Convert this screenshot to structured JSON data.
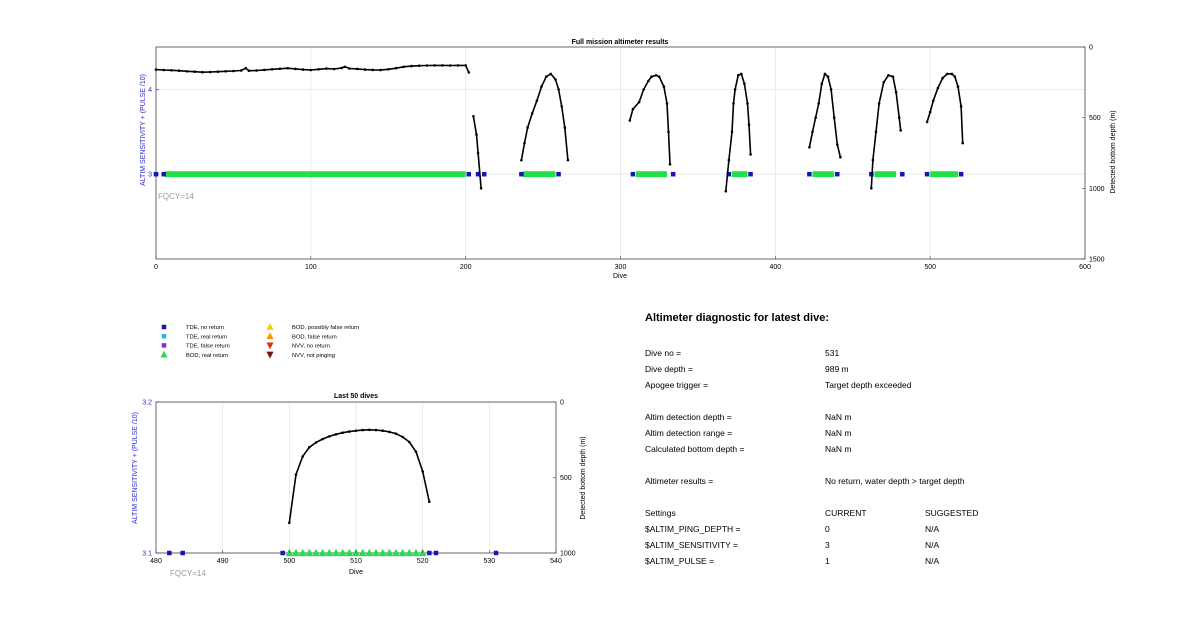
{
  "chart_data": [
    {
      "type": "scatter",
      "title": "Full mission altimeter results",
      "xlabel": "Dive",
      "ylabel": "ALTIM SENSITIVITY + (PULSE /10)",
      "y2label": "Detected bottom depth (m)",
      "xlim": [
        0,
        600
      ],
      "ylim": [
        2,
        4.5
      ],
      "y2lim": [
        0,
        1500
      ],
      "xticks": [
        "0",
        "100",
        "200",
        "300",
        "400",
        "500",
        "600"
      ],
      "yticks": [
        "3",
        "4"
      ],
      "y2ticks": [
        "0",
        "500",
        "1000",
        "1500"
      ],
      "annotation": "FQCY=14",
      "grid": true,
      "series": [
        {
          "name": "depth profile",
          "type": "line",
          "color": "#000000",
          "segments": [
            [
              [
                0,
                160
              ],
              [
                5,
                163
              ],
              [
                10,
                165
              ],
              [
                15,
                168
              ],
              [
                20,
                172
              ],
              [
                25,
                175
              ],
              [
                30,
                178
              ],
              [
                35,
                177
              ],
              [
                40,
                175
              ],
              [
                45,
                172
              ],
              [
                50,
                170
              ],
              [
                55,
                166
              ],
              [
                58,
                150
              ],
              [
                60,
                168
              ],
              [
                65,
                166
              ],
              [
                70,
                162
              ],
              [
                75,
                158
              ],
              [
                80,
                154
              ],
              [
                85,
                150
              ],
              [
                90,
                155
              ],
              [
                95,
                160
              ],
              [
                100,
                163
              ],
              [
                105,
                158
              ],
              [
                110,
                153
              ],
              [
                115,
                156
              ],
              [
                120,
                148
              ],
              [
                122,
                140
              ],
              [
                125,
                152
              ],
              [
                130,
                155
              ],
              [
                135,
                160
              ],
              [
                140,
                162
              ],
              [
                145,
                163
              ],
              [
                150,
                158
              ],
              [
                155,
                150
              ],
              [
                160,
                140
              ],
              [
                165,
                135
              ],
              [
                170,
                132
              ],
              [
                175,
                131
              ],
              [
                180,
                130
              ],
              [
                185,
                130
              ],
              [
                190,
                131
              ],
              [
                195,
                130
              ],
              [
                200,
                130
              ],
              [
                202,
                180
              ]
            ],
            [
              [
                205,
                490
              ],
              [
                207,
                620
              ],
              [
                208,
                750
              ],
              [
                210,
                1000
              ]
            ],
            [
              [
                236,
                800
              ],
              [
                238,
                680
              ],
              [
                240,
                570
              ],
              [
                243,
                470
              ],
              [
                246,
                380
              ],
              [
                249,
                280
              ],
              [
                252,
                210
              ],
              [
                255,
                190
              ],
              [
                258,
                230
              ],
              [
                260,
                300
              ],
              [
                262,
                420
              ],
              [
                264,
                570
              ],
              [
                266,
                800
              ]
            ],
            [
              [
                306,
                520
              ],
              [
                308,
                440
              ],
              [
                312,
                390
              ],
              [
                315,
                300
              ],
              [
                318,
                240
              ],
              [
                320,
                210
              ],
              [
                323,
                200
              ],
              [
                325,
                210
              ],
              [
                328,
                280
              ],
              [
                330,
                400
              ],
              [
                331,
                600
              ],
              [
                332,
                830
              ]
            ],
            [
              [
                368,
                1020
              ],
              [
                370,
                800
              ],
              [
                372,
                600
              ],
              [
                373,
                400
              ],
              [
                374,
                300
              ],
              [
                376,
                200
              ],
              [
                378,
                190
              ],
              [
                380,
                260
              ],
              [
                382,
                400
              ],
              [
                383,
                550
              ],
              [
                384,
                760
              ]
            ],
            [
              [
                422,
                710
              ],
              [
                424,
                600
              ],
              [
                426,
                500
              ],
              [
                428,
                400
              ],
              [
                430,
                260
              ],
              [
                432,
                190
              ],
              [
                434,
                210
              ],
              [
                436,
                300
              ],
              [
                438,
                500
              ],
              [
                440,
                690
              ],
              [
                442,
                780
              ]
            ],
            [
              [
                462,
                1000
              ],
              [
                463,
                800
              ],
              [
                465,
                600
              ],
              [
                467,
                400
              ],
              [
                470,
                250
              ],
              [
                473,
                200
              ],
              [
                476,
                210
              ],
              [
                478,
                320
              ],
              [
                480,
                500
              ],
              [
                481,
                590
              ]
            ],
            [
              [
                498,
                530
              ],
              [
                500,
                460
              ],
              [
                502,
                380
              ],
              [
                505,
                290
              ],
              [
                508,
                220
              ],
              [
                511,
                190
              ],
              [
                514,
                190
              ],
              [
                516,
                210
              ],
              [
                518,
                280
              ],
              [
                520,
                420
              ],
              [
                521,
                680
              ]
            ]
          ]
        },
        {
          "name": "TDE, no return",
          "type": "marker",
          "color": "#1616b4",
          "points": [
            [
              0,
              3
            ],
            [
              5,
              3
            ],
            [
              202,
              3
            ],
            [
              208,
              3
            ],
            [
              212,
              3
            ],
            [
              236,
              3
            ],
            [
              260,
              3
            ],
            [
              308,
              3
            ],
            [
              334,
              3
            ],
            [
              370,
              3
            ],
            [
              384,
              3
            ],
            [
              422,
              3
            ],
            [
              440,
              3
            ],
            [
              462,
              3
            ],
            [
              482,
              3
            ],
            [
              498,
              3
            ],
            [
              520,
              3
            ]
          ]
        },
        {
          "name": "BOD, real return",
          "type": "band",
          "color": "#22e04a",
          "ranges": [
            [
              6,
              200
            ],
            [
              237,
              258
            ],
            [
              310,
              330
            ],
            [
              372,
              382
            ],
            [
              424,
              438
            ],
            [
              464,
              478
            ],
            [
              500,
              518
            ]
          ]
        }
      ]
    },
    {
      "type": "scatter",
      "title": "Last 50 dives",
      "xlabel": "Dive",
      "ylabel": "ALTIM SENSITIVITY + (PULSE /10)",
      "y2label": "Detected bottom depth (m)",
      "xlim": [
        480,
        540
      ],
      "ylim": [
        3.1,
        3.2
      ],
      "y2lim": [
        0,
        1000
      ],
      "xticks": [
        "480",
        "490",
        "500",
        "510",
        "520",
        "530",
        "540"
      ],
      "yticks": [
        "3.1",
        "3.2"
      ],
      "y2ticks": [
        "0",
        "500",
        "1000"
      ],
      "annotation": "FQCY=14",
      "grid": true,
      "series": [
        {
          "name": "depth profile",
          "type": "line",
          "color": "#000000",
          "points": [
            [
              500,
              800
            ],
            [
              501,
              480
            ],
            [
              502,
              360
            ],
            [
              503,
              300
            ],
            [
              504,
              268
            ],
            [
              505,
              245
            ],
            [
              506,
              228
            ],
            [
              507,
              214
            ],
            [
              508,
              203
            ],
            [
              509,
              196
            ],
            [
              510,
              190
            ],
            [
              511,
              186
            ],
            [
              512,
              184
            ],
            [
              513,
              186
            ],
            [
              514,
              190
            ],
            [
              515,
              198
            ],
            [
              516,
              210
            ],
            [
              517,
              232
            ],
            [
              518,
              265
            ],
            [
              519,
              330
            ],
            [
              520,
              460
            ],
            [
              521,
              660
            ]
          ]
        },
        {
          "name": "TDE, no return",
          "type": "marker",
          "color": "#1616b4",
          "points": [
            [
              482,
              3.1
            ],
            [
              484,
              3.1
            ],
            [
              499,
              3.1
            ],
            [
              521,
              3.1
            ],
            [
              522,
              3.1
            ],
            [
              531,
              3.1
            ]
          ]
        },
        {
          "name": "BOD, real return",
          "type": "marker",
          "color": "#22e04a",
          "points": [
            [
              500,
              3.1
            ],
            [
              501,
              3.1
            ],
            [
              502,
              3.1
            ],
            [
              503,
              3.1
            ],
            [
              504,
              3.1
            ],
            [
              505,
              3.1
            ],
            [
              506,
              3.1
            ],
            [
              507,
              3.1
            ],
            [
              508,
              3.1
            ],
            [
              509,
              3.1
            ],
            [
              510,
              3.1
            ],
            [
              511,
              3.1
            ],
            [
              512,
              3.1
            ],
            [
              513,
              3.1
            ],
            [
              514,
              3.1
            ],
            [
              515,
              3.1
            ],
            [
              516,
              3.1
            ],
            [
              517,
              3.1
            ],
            [
              518,
              3.1
            ],
            [
              519,
              3.1
            ],
            [
              520,
              3.1
            ]
          ]
        }
      ]
    }
  ],
  "legend": [
    {
      "label": "TDE, no return",
      "shape": "square",
      "color": "#1616b4"
    },
    {
      "label": "TDE, real return",
      "shape": "square",
      "color": "#2ab6e0"
    },
    {
      "label": "TDE, false return",
      "shape": "square",
      "color": "#8a2be2"
    },
    {
      "label": "BOD, real return",
      "shape": "triangle-up",
      "color": "#22e04a"
    },
    {
      "label": "BOD, possibly false return",
      "shape": "triangle-up",
      "color": "#f0d000"
    },
    {
      "label": "BOD, false return",
      "shape": "triangle-up",
      "color": "#f09a00"
    },
    {
      "label": "NVV, no return",
      "shape": "triangle-down",
      "color": "#e03010"
    },
    {
      "label": "NVV, not pinging",
      "shape": "triangle-down",
      "color": "#7a1010"
    }
  ],
  "diagnostic": {
    "title": "Altimeter diagnostic for latest dive:",
    "dive_no_label": "Dive no =",
    "dive_no": "531",
    "dive_depth_label": "Dive depth =",
    "dive_depth": "989 m",
    "apogee_label": "Apogee trigger =",
    "apogee": "Target depth exceeded",
    "det_depth_label": "Altim detection depth =",
    "det_depth": "NaN m",
    "det_range_label": "Altim detection range =",
    "det_range": "NaN m",
    "bottom_label": "Calculated bottom depth =",
    "bottom": "NaN m",
    "results_label": "Altimeter results =",
    "results": "No return, water depth > target depth",
    "settings_label": "Settings",
    "current_label": "CURRENT",
    "suggested_label": "SUGGESTED",
    "settings": [
      {
        "name": "$ALTIM_PING_DEPTH =",
        "current": "0",
        "suggested": "N/A"
      },
      {
        "name": "$ALTIM_SENSITIVITY =",
        "current": "3",
        "suggested": "N/A"
      },
      {
        "name": "$ALTIM_PULSE =",
        "current": "1",
        "suggested": "N/A"
      }
    ]
  },
  "colors": {
    "axis_label": "#2b2bd0",
    "grid": "#e6e6e6",
    "annotation": "#9a9a9a"
  }
}
